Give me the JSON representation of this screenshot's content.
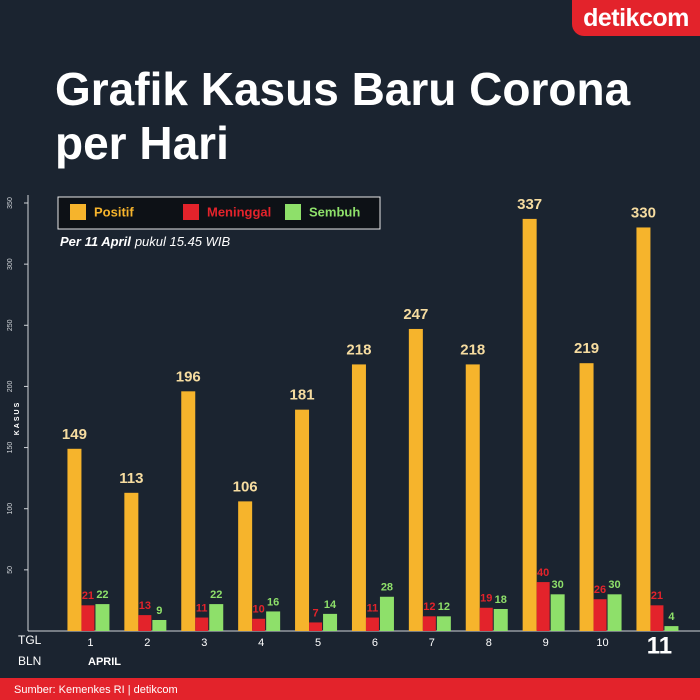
{
  "chart_data": {
    "type": "bar",
    "title": "Grafik Kasus Baru Corona per Hari",
    "subtitle": [
      "Per 11 April",
      "pukul 15.45 WIB"
    ],
    "ylabel": "KASUS",
    "row_labels": [
      "TGL",
      "BLN"
    ],
    "month": "APRIL",
    "brand": "detikcom",
    "source": "Sumber: Kemenkes RI | detikcom",
    "categories": [
      "1",
      "2",
      "3",
      "4",
      "5",
      "6",
      "7",
      "8",
      "9",
      "10",
      "11"
    ],
    "series": [
      {
        "name": "Positif",
        "color": "#f6b42c",
        "values": [
          149,
          113,
          196,
          106,
          181,
          218,
          247,
          218,
          337,
          219,
          330
        ]
      },
      {
        "name": "Meninggal",
        "color": "#e3232b",
        "values": [
          21,
          13,
          11,
          10,
          7,
          11,
          12,
          19,
          40,
          26,
          21
        ]
      },
      {
        "name": "Sembuh",
        "color": "#8ee06a",
        "values": [
          22,
          9,
          22,
          16,
          14,
          28,
          12,
          18,
          30,
          30,
          4
        ]
      }
    ],
    "ylim": [
      0,
      350
    ],
    "yticks": [
      50,
      100,
      150,
      200,
      250,
      300,
      350
    ],
    "legend": "top-left"
  }
}
